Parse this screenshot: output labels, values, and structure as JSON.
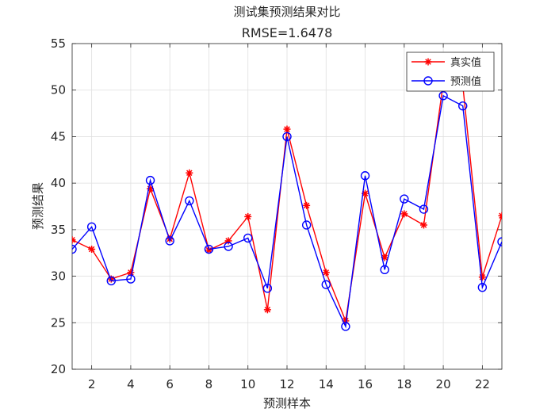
{
  "chart_data": {
    "type": "line",
    "title": "测试集预测结果对比",
    "subtitle": "RMSE=1.6478",
    "xlabel": "预测样本",
    "ylabel": "预测结果",
    "xlim": [
      1,
      23
    ],
    "ylim": [
      20,
      55
    ],
    "xticks": [
      2,
      4,
      6,
      8,
      10,
      12,
      14,
      16,
      18,
      20,
      22
    ],
    "yticks": [
      20,
      25,
      30,
      35,
      40,
      45,
      50,
      55
    ],
    "grid": true,
    "legend_position": "top-right",
    "x": [
      1,
      2,
      3,
      4,
      5,
      6,
      7,
      8,
      9,
      10,
      11,
      12,
      13,
      14,
      15,
      16,
      17,
      18,
      19,
      20,
      21,
      22,
      23
    ],
    "series": [
      {
        "name": "真实值",
        "color": "#ff0000",
        "marker": "asterisk",
        "values": [
          33.9,
          32.9,
          29.7,
          30.4,
          39.4,
          34.0,
          41.1,
          32.8,
          33.8,
          36.4,
          26.4,
          45.8,
          37.6,
          30.4,
          25.2,
          38.9,
          32.0,
          36.7,
          35.5,
          50.8,
          50.5,
          29.9,
          36.5
        ]
      },
      {
        "name": "预测值",
        "color": "#0000ff",
        "marker": "circle",
        "values": [
          32.9,
          35.3,
          29.5,
          29.7,
          40.3,
          33.8,
          38.1,
          32.9,
          33.2,
          34.1,
          28.7,
          45.0,
          35.5,
          29.1,
          24.6,
          40.8,
          30.7,
          38.3,
          37.2,
          49.4,
          48.3,
          28.8,
          33.7
        ]
      }
    ]
  }
}
